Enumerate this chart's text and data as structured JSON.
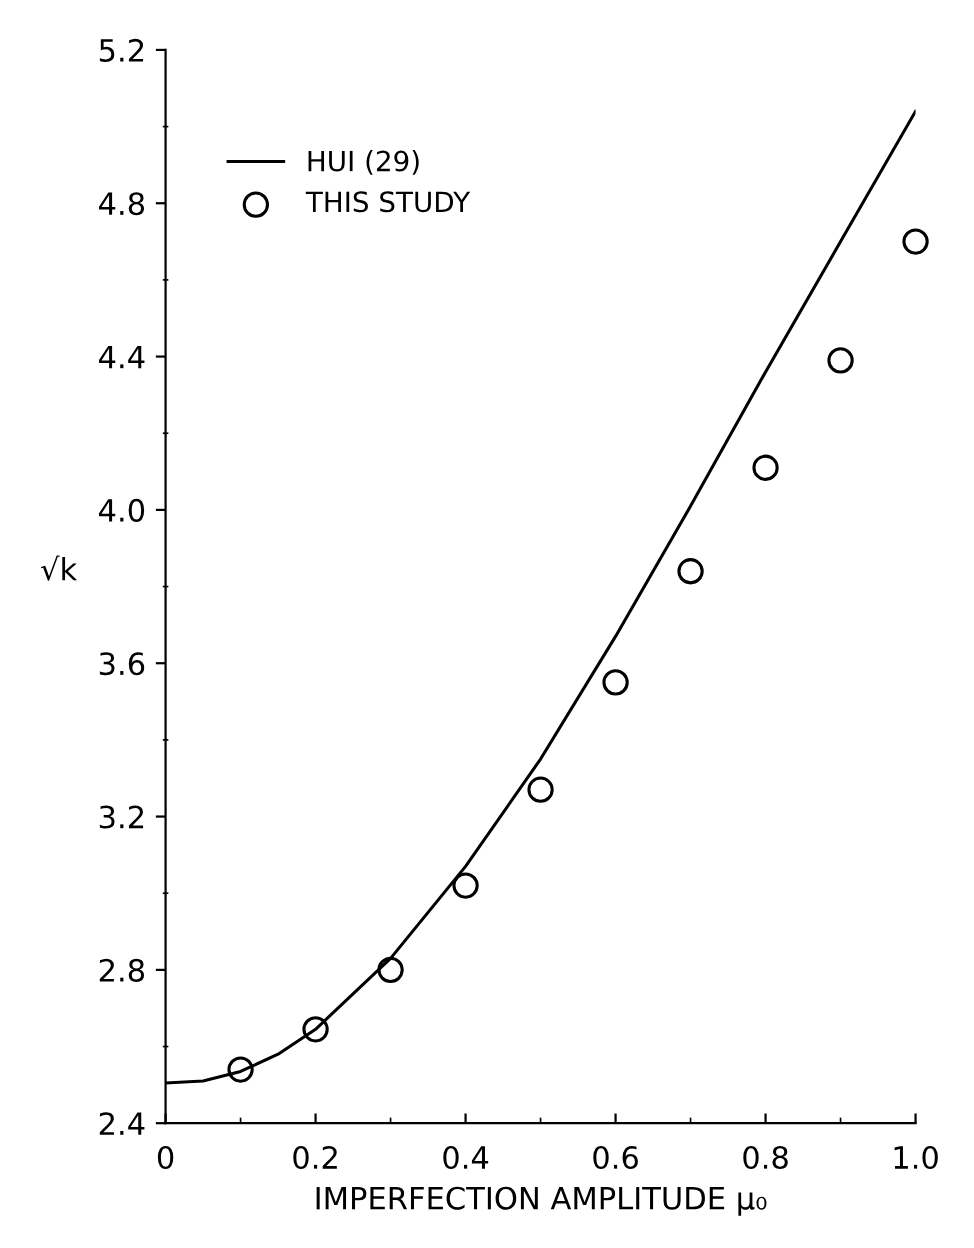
{
  "chart_data": {
    "type": "line",
    "xlabel": "IMPERFECTION AMPLITUDE μ₀",
    "ylabel": "√k",
    "xlim": [
      0,
      1.0
    ],
    "ylim": [
      2.4,
      5.2
    ],
    "xticks": [
      {
        "value": 0,
        "label": "0"
      },
      0.2,
      0.4,
      0.6,
      0.8,
      {
        "value": 1.0,
        "label": "1.0"
      }
    ],
    "yticks": [
      2.4,
      2.8,
      3.2,
      3.6,
      {
        "value": 4.0,
        "label": "4.0"
      },
      4.4,
      4.8,
      5.2
    ],
    "legend": "top left",
    "grid": false,
    "series": [
      {
        "name": "HUI (29)",
        "color": "#000000",
        "marker": "none",
        "line_style": "solid",
        "x": [
          0,
          0.05,
          0.1,
          0.15,
          0.2,
          0.3,
          0.4,
          0.5,
          0.6,
          0.7,
          0.8,
          0.9,
          1.0
        ],
        "values": [
          2.505,
          2.51,
          2.535,
          2.58,
          2.645,
          2.83,
          3.07,
          3.35,
          3.67,
          4.01,
          4.36,
          4.7,
          5.04
        ]
      },
      {
        "name": "THIS STUDY",
        "type": "scatter",
        "color": "#000000",
        "marker": "circle",
        "x": [
          0.1,
          0.2,
          0.3,
          0.4,
          0.5,
          0.6,
          0.7,
          0.8,
          0.9,
          1.0
        ],
        "values": [
          2.54,
          2.645,
          2.8,
          3.02,
          3.27,
          3.55,
          3.84,
          4.11,
          4.39,
          4.7
        ]
      }
    ]
  }
}
